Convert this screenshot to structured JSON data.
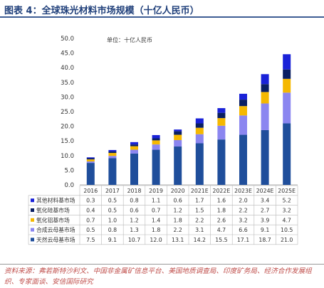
{
  "title": "图表 4：全球珠光材料市场规模（十亿人民币）",
  "unit_note": "单位：十亿人民币",
  "source": "资料来源：弗若斯特沙利文、中国非金属矿信息平台、美国地质调查局、印度矿务局、经济合作发展组织、专家面谈、安信国际研究",
  "chart_data": {
    "type": "bar",
    "stacked": true,
    "categories": [
      "2016",
      "2017",
      "2018",
      "2019",
      "2020",
      "2021E",
      "2022E",
      "2023E",
      "2024E",
      "2025E"
    ],
    "ylim": [
      0,
      50
    ],
    "yticks": [
      "0.0",
      "5.0",
      "10.0",
      "15.0",
      "20.0",
      "25.0",
      "30.0",
      "35.0",
      "40.0",
      "45.0",
      "50.0"
    ],
    "series": [
      {
        "name": "天然云母基市场",
        "color": "#1f4e9b",
        "values": [
          7.5,
          9.1,
          10.7,
          12.0,
          13.1,
          14.2,
          15.5,
          17.1,
          18.7,
          21.0
        ],
        "labels": [
          "7.5",
          "9.1",
          "10.7",
          "12.0",
          "13.1",
          "14.2",
          "15.5",
          "17.1",
          "18.7",
          "21.0"
        ]
      },
      {
        "name": "合成云母基市场",
        "color": "#8b86f0",
        "values": [
          0.5,
          0.8,
          1.3,
          1.8,
          2.2,
          3.1,
          4.7,
          6.6,
          9.1,
          10.5
        ],
        "labels": [
          "0.5",
          "0.8",
          "1.3",
          "1.8",
          "2.2",
          "3.1",
          "4.7",
          "6.6",
          "9.1",
          "10.5"
        ]
      },
      {
        "name": "氧化铝基市场",
        "color": "#f5b800",
        "values": [
          0.7,
          1.0,
          1.2,
          1.4,
          1.8,
          2.2,
          2.6,
          3.2,
          3.9,
          4.7
        ],
        "labels": [
          "0.7",
          "1.0",
          "1.2",
          "1.4",
          "1.8",
          "2.2",
          "2.6",
          "3.2",
          "3.9",
          "4.7"
        ]
      },
      {
        "name": "氧化硅基市场",
        "color": "#0a1f63",
        "values": [
          0.4,
          0.5,
          0.6,
          0.7,
          1.2,
          1.5,
          1.8,
          2.2,
          2.7,
          3.2
        ],
        "labels": [
          "0.4",
          "0.5",
          "0.6",
          "0.7",
          "1.2",
          "1.5",
          "1.8",
          "2.2",
          "2.7",
          "3.2"
        ]
      },
      {
        "name": "其他材料基市场",
        "color": "#1a22d8",
        "values": [
          0.3,
          0.5,
          0.8,
          1.1,
          0.6,
          1.7,
          1.6,
          2.0,
          3.4,
          5.2
        ],
        "labels": [
          "0.3",
          "0.5",
          "0.8",
          "1.1",
          "0.6",
          "1.7",
          "1.6",
          "2.0",
          "3.4",
          "5.2"
        ]
      }
    ]
  }
}
